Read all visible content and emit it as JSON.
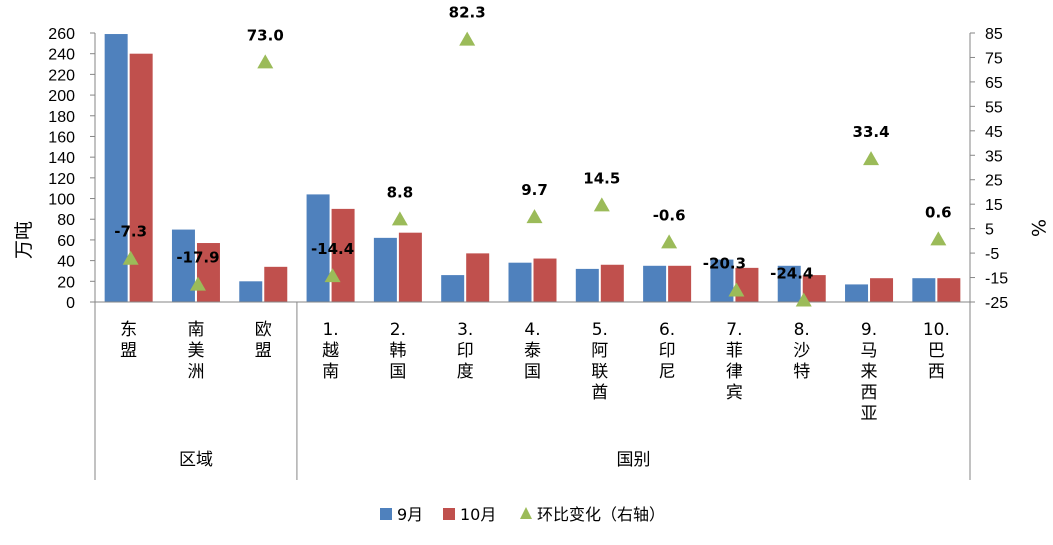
{
  "chart_data": {
    "type": "bar",
    "y_left_label": "万吨",
    "y_right_label": "%",
    "y_left_ticks": [
      0,
      20,
      40,
      60,
      80,
      100,
      120,
      140,
      160,
      180,
      200,
      220,
      240,
      260
    ],
    "y_right_ticks": [
      -25,
      -15,
      -5,
      5,
      15,
      25,
      35,
      45,
      55,
      65,
      75,
      85
    ],
    "ylim_left": [
      0,
      260
    ],
    "ylim_right": [
      -25,
      85
    ],
    "categories": [
      [
        "东",
        "盟"
      ],
      [
        "南",
        "美",
        "洲"
      ],
      [
        "欧",
        "盟"
      ],
      [
        "1.",
        "越",
        "南"
      ],
      [
        "2.",
        "韩",
        "国"
      ],
      [
        "3.",
        "印",
        "度"
      ],
      [
        "4.",
        "泰",
        "国"
      ],
      [
        "5.",
        "阿",
        "联",
        "酋"
      ],
      [
        "6.",
        "印",
        "尼"
      ],
      [
        "7.",
        "菲",
        "律",
        "宾"
      ],
      [
        "8.",
        "沙",
        "特"
      ],
      [
        "9.",
        "马",
        "来",
        "西",
        "亚"
      ],
      [
        "10.",
        "巴",
        "西"
      ]
    ],
    "groups": [
      {
        "label": "区域",
        "start": 0,
        "end": 2
      },
      {
        "label": "国别",
        "start": 3,
        "end": 12
      }
    ],
    "series": [
      {
        "name": "9月",
        "type": "bar",
        "axis": "left",
        "color": "#4F81BD",
        "values": [
          259,
          70,
          20,
          104,
          62,
          26,
          38,
          32,
          35,
          41,
          35,
          17,
          23
        ]
      },
      {
        "name": "10月",
        "type": "bar",
        "axis": "left",
        "color": "#C0504D",
        "values": [
          240,
          57,
          34,
          90,
          67,
          47,
          42,
          36,
          35,
          33,
          26,
          23,
          23
        ]
      },
      {
        "name": "环比变化（右轴）",
        "type": "scatter",
        "axis": "right",
        "color": "#9BBB59",
        "values": [
          -7.3,
          -17.9,
          73.0,
          -14.4,
          8.8,
          82.3,
          9.7,
          14.5,
          -0.6,
          -20.3,
          -24.4,
          33.4,
          0.6
        ],
        "labels": [
          "-7.3",
          "-17.9",
          "73.0",
          "-14.4",
          "8.8",
          "82.3",
          "9.7",
          "14.5",
          "-0.6",
          "-20.3",
          "-24.4",
          "33.4",
          "0.6"
        ]
      }
    ],
    "legend": {
      "placement": "bottom"
    }
  }
}
